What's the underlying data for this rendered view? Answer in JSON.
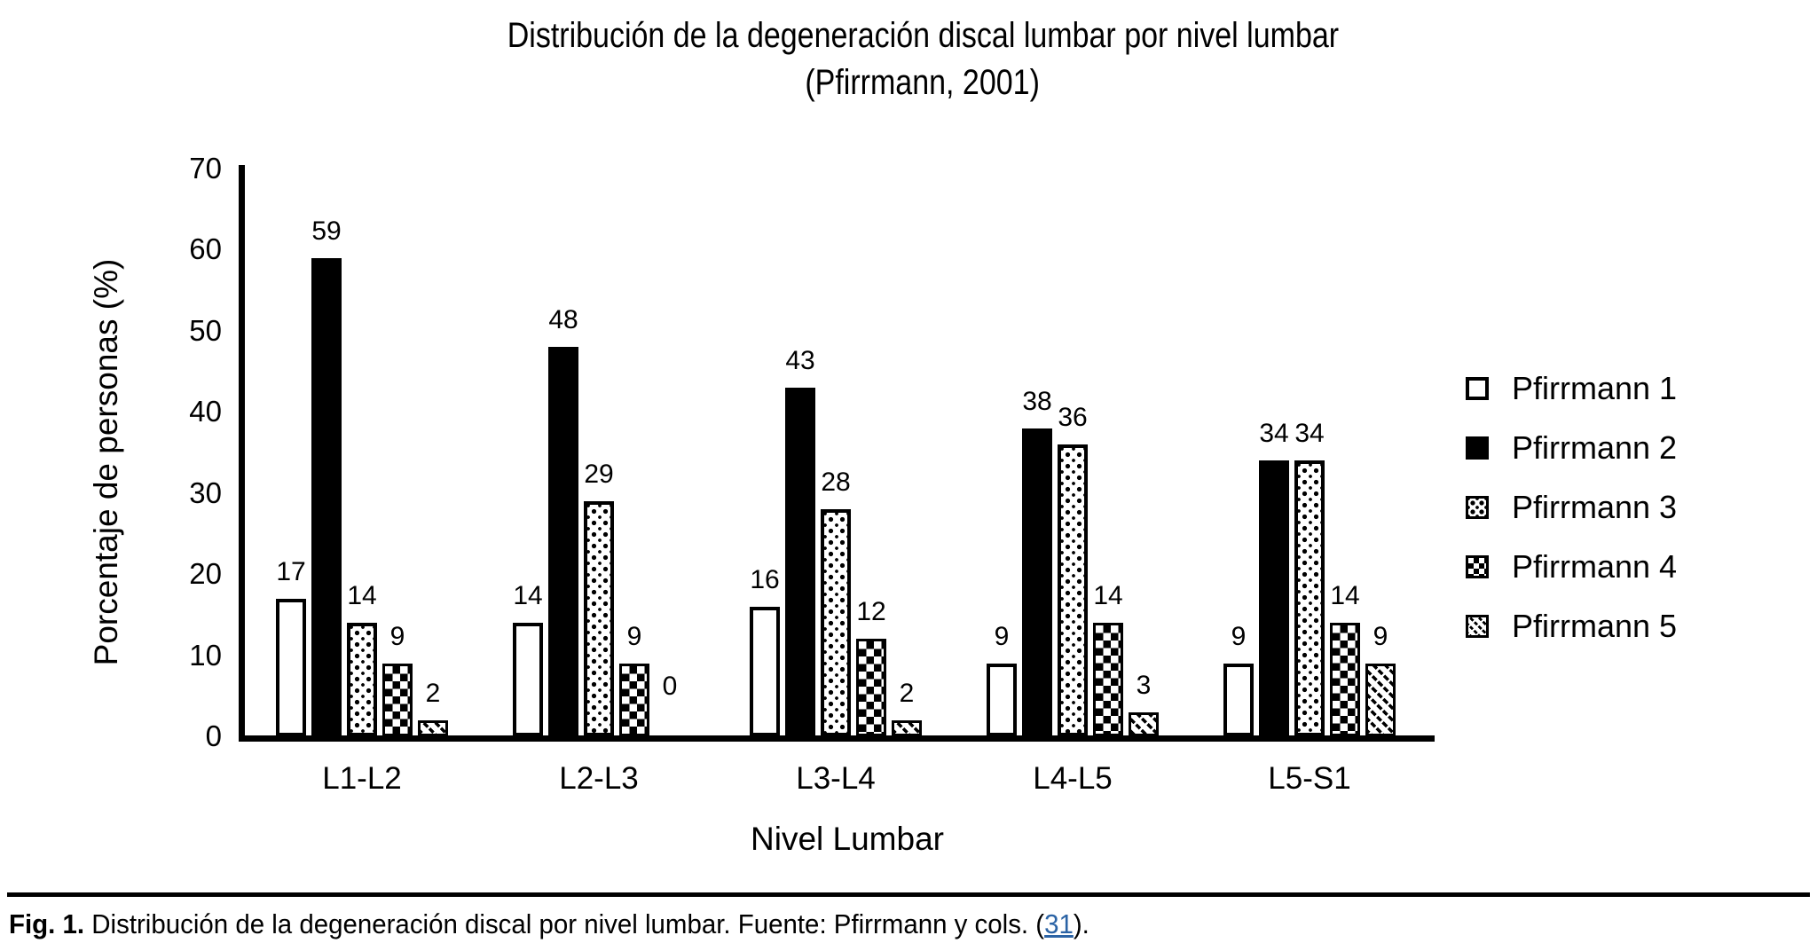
{
  "title": {
    "line1": "Distribución de la degeneración discal lumbar por nivel lumbar",
    "line2": "(Pfirrmann, 2001)"
  },
  "chart_data": {
    "type": "bar",
    "title": "Distribución de la degeneración discal lumbar por nivel lumbar (Pfirrmann, 2001)",
    "categories": [
      "L1-L2",
      "L2-L3",
      "L3-L4",
      "L4-L5",
      "L5-S1"
    ],
    "series": [
      {
        "name": "Pfirrmann 1",
        "pattern": "white",
        "values": [
          17,
          14,
          16,
          9,
          9
        ]
      },
      {
        "name": "Pfirrmann 2",
        "pattern": "solid-black",
        "values": [
          59,
          48,
          43,
          38,
          34
        ]
      },
      {
        "name": "Pfirrmann 3",
        "pattern": "dots",
        "values": [
          14,
          29,
          28,
          36,
          34
        ]
      },
      {
        "name": "Pfirrmann 4",
        "pattern": "checkerboard",
        "values": [
          9,
          9,
          12,
          14,
          14
        ]
      },
      {
        "name": "Pfirrmann 5",
        "pattern": "diagonal-hatch",
        "values": [
          2,
          0,
          2,
          3,
          9
        ]
      }
    ],
    "xlabel": "Nivel Lumbar",
    "ylabel": "Porcentaje de personas (%)",
    "ylim": [
      0,
      70
    ],
    "yticks": [
      0,
      10,
      20,
      30,
      40,
      50,
      60,
      70
    ],
    "bar_value_labels": true,
    "grid": false,
    "legend_position": "right",
    "colors": {
      "foreground": "#000000",
      "background": "#ffffff"
    }
  },
  "caption": {
    "fig_label": "Fig. 1.",
    "text_before_link": " Distribución de la degeneración discal por nivel lumbar. Fuente: Pfirrmann y cols. (",
    "link_text": "31",
    "text_after_link": ").",
    "link_color": "#2b63a5"
  }
}
